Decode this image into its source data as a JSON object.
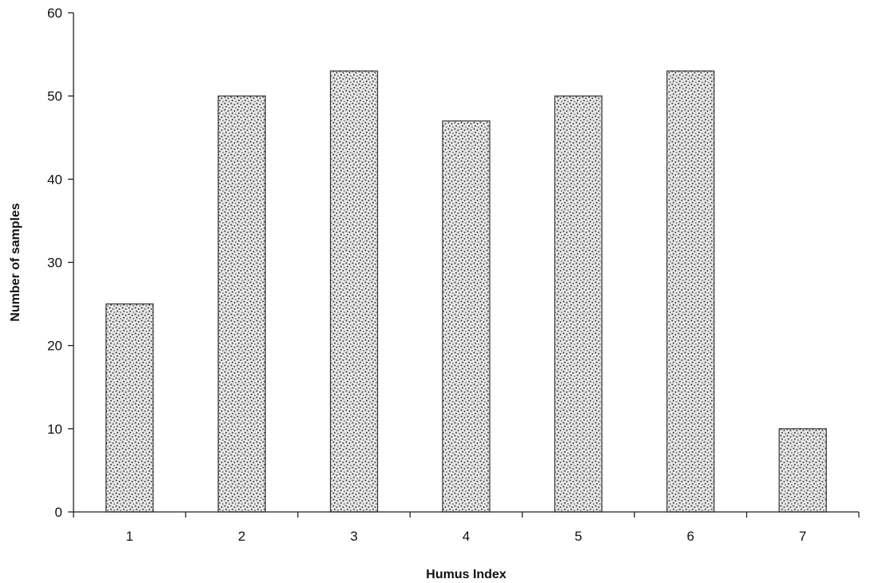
{
  "chart_data": {
    "type": "bar",
    "title": "",
    "xlabel": "Humus Index",
    "ylabel": "Number of samples",
    "categories": [
      "1",
      "2",
      "3",
      "4",
      "5",
      "6",
      "7"
    ],
    "values": [
      25,
      50,
      53,
      47,
      50,
      53,
      10
    ],
    "ylim": [
      0,
      60
    ],
    "yticks": [
      "0",
      "10",
      "20",
      "30",
      "40",
      "50",
      "60"
    ],
    "grid": false,
    "legend": "none",
    "bar_fill": "stippled",
    "colors": {
      "bar_fill": "#e6e6e6",
      "bar_dots": "#3a3a3a",
      "axis": "#222222",
      "text": "#111111"
    }
  }
}
